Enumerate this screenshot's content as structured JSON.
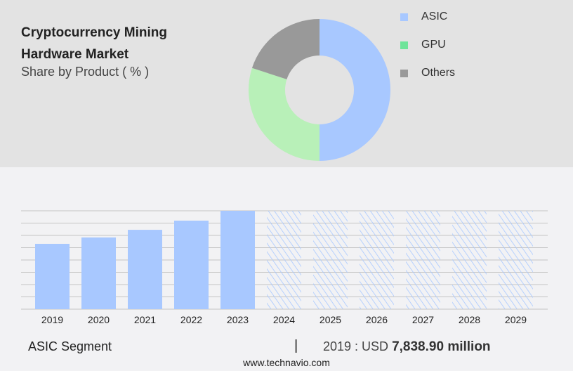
{
  "header": {
    "title": "Cryptocurrency Mining Hardware Market",
    "subtitle": "Share by Product ( % )"
  },
  "chart_data": [
    {
      "type": "pie",
      "variant": "donut",
      "legend_position": "right",
      "slices": [
        {
          "name": "ASIC",
          "value": 50,
          "color": "#a8c8ff"
        },
        {
          "name": "GPU",
          "value": 30,
          "color": "#b8f0b8"
        },
        {
          "name": "Others",
          "value": 20,
          "color": "#999999"
        }
      ],
      "legend_colors": [
        "#a8c8ff",
        "#6fe49a",
        "#999999"
      ]
    },
    {
      "type": "bar",
      "categories": [
        "2019",
        "2020",
        "2021",
        "2022",
        "2023",
        "2024",
        "2025",
        "2026",
        "2027",
        "2028",
        "2029"
      ],
      "values": [
        7838.9,
        8600,
        9520,
        10620,
        11800,
        null,
        null,
        null,
        null,
        null,
        null
      ],
      "forecast_from": "2024",
      "ylim": [
        0,
        11800
      ],
      "grid": true,
      "color": "#a8c8ff",
      "ylabel": "",
      "xlabel": ""
    }
  ],
  "footer": {
    "segment": "ASIC Segment",
    "separator": "|",
    "value_prefix": "2019 : USD",
    "value_bold": "7,838.90 million",
    "site": "www.technavio.com"
  }
}
